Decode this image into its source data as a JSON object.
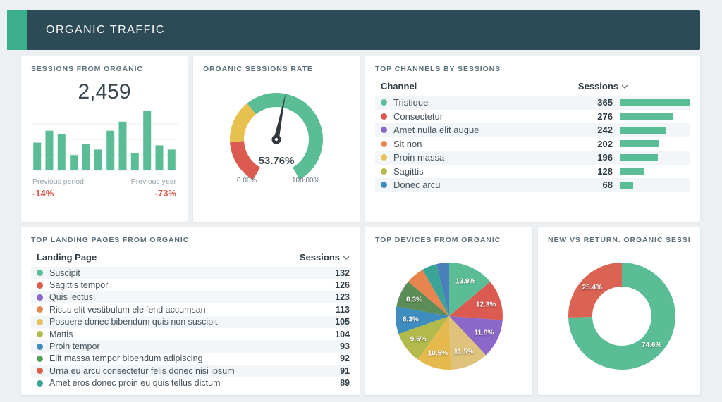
{
  "header": {
    "title": "ORGANIC TRAFFIC"
  },
  "colors": {
    "accent_green": "#3bae8b",
    "header_bg": "#2d4a57",
    "bar_green": "#5bbd95",
    "negative_red": "#dc5145",
    "zebra_row": "#f3f6f8"
  },
  "cards": {
    "sessions": {
      "title": "SESSIONS FROM ORGANIC",
      "value": "2,459",
      "compare": [
        {
          "label": "Previous period",
          "value": "-14%"
        },
        {
          "label": "Previous year",
          "value": "-73%"
        }
      ]
    },
    "rate": {
      "title": "ORGANIC SESSIONS RATE",
      "value_label": "53.76%",
      "min_label": "0.00%",
      "max_label": "100.00%"
    },
    "channels": {
      "title": "TOP CHANNELS BY SESSIONS",
      "col_channel": "Channel",
      "col_sessions": "Sessions"
    },
    "landing_pages": {
      "title": "TOP LANDING PAGES FROM ORGANIC",
      "col_page": "Landing Page",
      "col_sessions": "Sessions"
    },
    "devices": {
      "title": "TOP DEVICES FROM ORGANIC"
    },
    "new_vs_returning": {
      "title": "NEW VS RETURN. ORGANIC SESSI..."
    }
  },
  "chart_data": [
    {
      "id": "sessions_bar",
      "type": "bar",
      "title": "Sessions from Organic trend",
      "values": [
        40,
        57,
        52,
        22,
        38,
        30,
        57,
        70,
        25,
        85,
        36,
        30
      ],
      "color": "#5bbd95",
      "grid": true
    },
    {
      "id": "rate_gauge",
      "type": "gauge",
      "title": "Organic Sessions Rate",
      "value": 53.76,
      "min": 0,
      "max": 100,
      "segments": [
        {
          "from": 0,
          "to": 0.19,
          "color": "#dc5b51"
        },
        {
          "from": 0.19,
          "to": 0.37,
          "color": "#e7c04f"
        },
        {
          "from": 0.37,
          "to": 1,
          "color": "#5bbd95"
        }
      ]
    },
    {
      "id": "channels_table",
      "type": "bar",
      "title": "Top Channels by Sessions",
      "bar_color": "#5bbd95",
      "rows": [
        {
          "label": "Tristique",
          "value": 365,
          "dot_color": "#5bbd95"
        },
        {
          "label": "Consectetur",
          "value": 276,
          "dot_color": "#dc5b51"
        },
        {
          "label": "Amet nulla elit augue",
          "value": 242,
          "dot_color": "#8a67c9"
        },
        {
          "label": "Sit non",
          "value": 202,
          "dot_color": "#e8854e"
        },
        {
          "label": "Proin massa",
          "value": 196,
          "dot_color": "#e6c05a"
        },
        {
          "label": "Sagittis",
          "value": 128,
          "dot_color": "#b2ba4c"
        },
        {
          "label": "Donec arcu",
          "value": 68,
          "dot_color": "#3f8cbe"
        }
      ]
    },
    {
      "id": "landing_table",
      "type": "table",
      "title": "Top Landing Pages from Organic",
      "rows": [
        {
          "label": "Suscipit",
          "value": 132,
          "dot_color": "#5bbd95"
        },
        {
          "label": "Sagittis tempor",
          "value": 126,
          "dot_color": "#dc5b51"
        },
        {
          "label": "Quis lectus",
          "value": 123,
          "dot_color": "#8a67c9"
        },
        {
          "label": "Risus elit vestibulum eleifend accumsan",
          "value": 113,
          "dot_color": "#e8854e"
        },
        {
          "label": "Posuere donec bibendum quis non suscipit",
          "value": 105,
          "dot_color": "#e6c05a"
        },
        {
          "label": "Mattis",
          "value": 104,
          "dot_color": "#b2ba4c"
        },
        {
          "label": "Proin tempor",
          "value": 93,
          "dot_color": "#3f8cbe"
        },
        {
          "label": "Elit massa tempor bibendum adipiscing",
          "value": 92,
          "dot_color": "#55a05a"
        },
        {
          "label": "Urna eu arcu consectetur felis donec nisi ipsum",
          "value": 91,
          "dot_color": "#dd6148"
        },
        {
          "label": "Amet eros donec proin eu quis tellus dictum",
          "value": 89,
          "dot_color": "#3aa596"
        }
      ]
    },
    {
      "id": "devices_pie",
      "type": "pie",
      "title": "Top Devices from Organic",
      "slices": [
        {
          "label": "13.9%",
          "value": 13.9,
          "color": "#5bbd95"
        },
        {
          "label": "12.3%",
          "value": 12.3,
          "color": "#dc5b51"
        },
        {
          "label": "11.8%",
          "value": 11.8,
          "color": "#8a67c9"
        },
        {
          "label": "11.5%",
          "value": 11.5,
          "color": "#dfc37c"
        },
        {
          "label": "10.5%",
          "value": 10.5,
          "color": "#e5b94e"
        },
        {
          "label": "9.6%",
          "value": 9.6,
          "color": "#b2ba4c"
        },
        {
          "label": "8.3%",
          "value": 8.3,
          "color": "#3f8cbe"
        },
        {
          "label": "8.3%",
          "value": 8.3,
          "color": "#5d8d57"
        },
        {
          "label": "",
          "value": 5.5,
          "color": "#e8854e"
        },
        {
          "label": "",
          "value": 4.5,
          "color": "#3aa596"
        },
        {
          "label": "",
          "value": 3.8,
          "color": "#4a7fba"
        }
      ]
    },
    {
      "id": "nvr_donut",
      "type": "pie",
      "donut": true,
      "title": "New vs Returning Organic Sessions",
      "slices": [
        {
          "label": "74.6%",
          "value": 74.6,
          "color": "#5bbd95"
        },
        {
          "label": "25.4%",
          "value": 25.4,
          "color": "#db6354"
        }
      ]
    }
  ]
}
